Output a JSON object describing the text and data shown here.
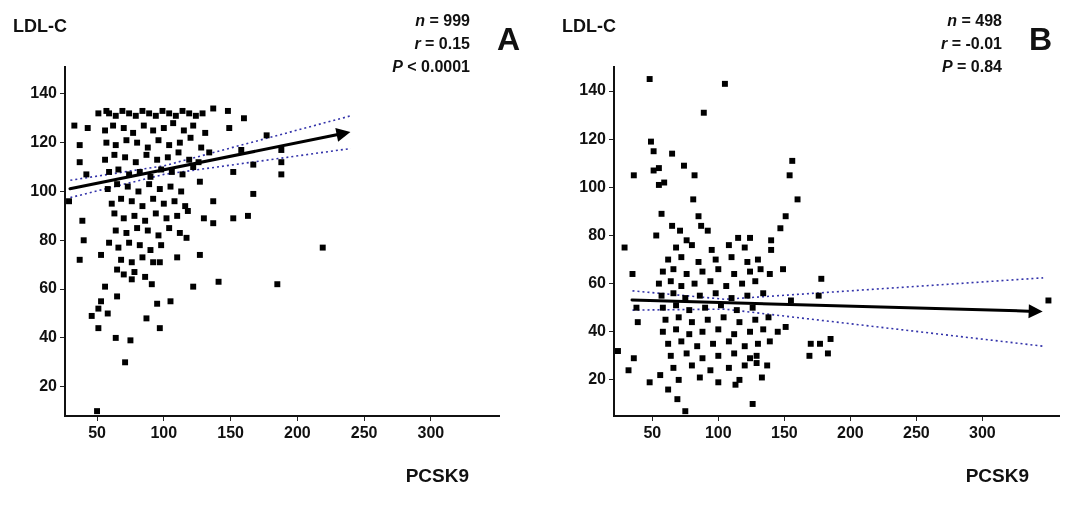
{
  "chart_data": [
    {
      "type": "scatter",
      "title": "A",
      "ylabel": "LDL-C",
      "xlabel": "PCSK9",
      "annotations": [
        "n = 999",
        "r = 0.15",
        "P < 0.0001"
      ],
      "xlim": [
        26,
        351
      ],
      "ylim": [
        8,
        151
      ],
      "xticks": [
        50,
        100,
        150,
        200,
        250,
        300
      ],
      "yticks": [
        20,
        40,
        60,
        80,
        100,
        120,
        140
      ],
      "series": [
        {
          "type": "scatter",
          "color": "#000000",
          "marker": "square",
          "x": [
            29,
            33,
            37,
            37,
            42,
            39,
            37,
            40,
            46,
            51,
            51,
            64,
            75,
            71,
            50,
            87,
            97,
            95,
            105,
            122,
            141,
            185,
            219,
            167,
            163,
            152,
            137,
            137,
            158,
            167,
            177,
            188,
            188,
            188,
            160,
            148,
            137,
            149,
            152,
            127,
            117,
            110,
            97,
            56,
            65,
            76,
            91,
            53,
            58,
            65,
            59,
            53,
            43,
            51,
            57,
            130,
            127,
            59,
            64,
            69,
            74,
            79,
            84,
            89,
            94,
            99,
            104,
            109,
            114,
            119,
            124,
            129,
            56,
            62,
            70,
            77,
            85,
            92,
            100,
            107,
            115,
            122,
            131,
            57,
            64,
            72,
            80,
            88,
            96,
            104,
            112,
            120,
            128,
            134,
            56,
            63,
            71,
            79,
            87,
            95,
            103,
            111,
            119,
            126,
            59,
            66,
            74,
            82,
            90,
            98,
            106,
            114,
            122,
            58,
            65,
            73,
            81,
            89,
            97,
            105,
            113,
            61,
            68,
            76,
            84,
            92,
            100,
            108,
            116,
            63,
            70,
            78,
            86,
            94,
            102,
            110,
            118,
            64,
            72,
            80,
            88,
            96,
            104,
            112,
            66,
            74,
            82,
            90,
            98,
            68,
            76,
            84,
            92,
            70,
            78,
            86
          ],
          "values": [
            96,
            127,
            119,
            112,
            107,
            88,
            72,
            80,
            49,
            44,
            52,
            40,
            39,
            30,
            10,
            48,
            44,
            54,
            55,
            61,
            63,
            62,
            77,
            99,
            90,
            89,
            87,
            96,
            117,
            111,
            123,
            112,
            107,
            117,
            130,
            133,
            134,
            126,
            108,
            74,
            81,
            73,
            71,
            61,
            57,
            64,
            62,
            55,
            50,
            68,
            79,
            74,
            126,
            132,
            133,
            89,
            104,
            132,
            131,
            133,
            132,
            131,
            133,
            132,
            131,
            133,
            132,
            131,
            133,
            132,
            131,
            132,
            125,
            127,
            126,
            124,
            127,
            125,
            126,
            128,
            125,
            127,
            124,
            120,
            119,
            121,
            120,
            118,
            121,
            119,
            120,
            122,
            118,
            116,
            113,
            115,
            114,
            112,
            115,
            113,
            114,
            116,
            113,
            112,
            108,
            109,
            107,
            108,
            106,
            109,
            108,
            107,
            110,
            101,
            103,
            102,
            100,
            103,
            101,
            102,
            100,
            95,
            97,
            96,
            94,
            97,
            95,
            96,
            94,
            91,
            89,
            90,
            88,
            91,
            89,
            90,
            92,
            84,
            83,
            85,
            84,
            82,
            85,
            83,
            77,
            79,
            78,
            76,
            78,
            72,
            71,
            73,
            71,
            66,
            67,
            65
          ]
        },
        {
          "type": "line",
          "color": "#3333aa",
          "marker": "none",
          "line_style": "dotted",
          "x": [
            30,
            100,
            240
          ],
          "values": [
            104.6,
            110.5,
            131
          ]
        },
        {
          "type": "line",
          "color": "#3333aa",
          "marker": "none",
          "line_style": "dotted",
          "x": [
            30,
            100,
            240
          ],
          "values": [
            97.5,
            107,
            117.6
          ]
        }
      ]
    },
    {
      "type": "scatter",
      "title": "B",
      "ylabel": "LDL-C",
      "xlabel": "PCSK9",
      "annotations": [
        "n = 498",
        "r = -0.01",
        "P = 0.84"
      ],
      "xlim": [
        21,
        358
      ],
      "ylim": [
        5,
        150
      ],
      "xticks": [
        50,
        100,
        150,
        200,
        250,
        300
      ],
      "yticks": [
        20,
        40,
        60,
        80,
        100,
        120,
        140
      ],
      "series": [
        {
          "type": "scatter",
          "color": "#000000",
          "marker": "square",
          "x": [
            48,
            105,
            89,
            49,
            51,
            65,
            36,
            51,
            55,
            55,
            59,
            74,
            82,
            81,
            85,
            87,
            92,
            57,
            53,
            65,
            71,
            76,
            29,
            35,
            24,
            32,
            36,
            48,
            56,
            62,
            69,
            75,
            126,
            113,
            133,
            156,
            154,
            160,
            151,
            147,
            140,
            140,
            124,
            115,
            149,
            139,
            178,
            176,
            155,
            170,
            177,
            185,
            169,
            183,
            151,
            145,
            139,
            137,
            129,
            129,
            39,
            38,
            350,
            68,
            80,
            95,
            108,
            120,
            62,
            72,
            85,
            98,
            110,
            122,
            130,
            58,
            66,
            76,
            88,
            100,
            112,
            124,
            132,
            55,
            64,
            72,
            82,
            94,
            106,
            118,
            128,
            57,
            66,
            75,
            86,
            98,
            110,
            122,
            134,
            58,
            68,
            78,
            90,
            102,
            114,
            126,
            60,
            70,
            80,
            92,
            104,
            116,
            128,
            138,
            58,
            68,
            78,
            88,
            100,
            112,
            124,
            134,
            62,
            72,
            84,
            96,
            108,
            120,
            130,
            64,
            76,
            88,
            100,
            112,
            124,
            66,
            80,
            94,
            108,
            120,
            70,
            86,
            100,
            116
          ],
          "values": [
            145,
            143,
            131,
            119,
            115,
            114,
            105,
            107,
            108,
            101,
            102,
            109,
            105,
            95,
            88,
            84,
            82,
            89,
            80,
            84,
            82,
            78,
            75,
            64,
            32,
            24,
            29,
            19,
            22,
            16,
            12,
            7,
            10,
            18,
            21,
            111,
            105,
            95,
            88,
            83,
            78,
            74,
            79,
            79,
            66,
            64,
            62,
            55,
            53,
            35,
            35,
            37,
            30,
            31,
            42,
            40,
            36,
            26,
            30,
            27,
            44,
            50,
            53,
            75,
            76,
            74,
            76,
            75,
            70,
            71,
            69,
            70,
            71,
            69,
            70,
            65,
            66,
            64,
            65,
            66,
            64,
            65,
            66,
            60,
            61,
            59,
            60,
            61,
            59,
            60,
            61,
            55,
            56,
            54,
            55,
            56,
            54,
            55,
            56,
            50,
            51,
            49,
            50,
            51,
            49,
            50,
            45,
            46,
            44,
            45,
            46,
            44,
            45,
            46,
            40,
            41,
            39,
            40,
            41,
            39,
            40,
            41,
            35,
            36,
            34,
            35,
            36,
            34,
            35,
            30,
            31,
            29,
            30,
            31,
            29,
            25,
            26,
            24,
            25,
            26,
            20,
            21,
            19,
            20
          ]
        },
        {
          "type": "line",
          "color": "#3333aa",
          "marker": "none",
          "line_style": "dotted",
          "x": [
            35,
            105,
            346
          ],
          "values": [
            57,
            53.5,
            62.4
          ]
        },
        {
          "type": "line",
          "color": "#3333aa",
          "marker": "none",
          "line_style": "dotted",
          "x": [
            35,
            105,
            346
          ],
          "values": [
            49,
            49.4,
            34
          ]
        }
      ]
    }
  ]
}
